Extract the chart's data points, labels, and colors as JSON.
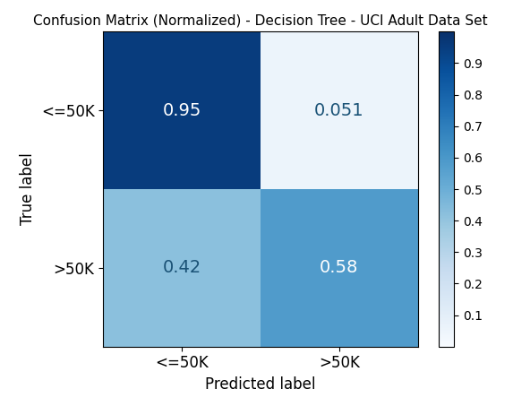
{
  "title": "Confusion Matrix (Normalized) - Decision Tree - UCI Adult Data Set",
  "matrix": [
    [
      0.95,
      0.051
    ],
    [
      0.42,
      0.58
    ]
  ],
  "classes": [
    "<=50K",
    ">50K"
  ],
  "xlabel": "Predicted label",
  "ylabel": "True label",
  "cmap": "Blues",
  "vmin": 0.0,
  "vmax": 1.0,
  "cbar_ticks": [
    0.1,
    0.2,
    0.3,
    0.4,
    0.5,
    0.6,
    0.7,
    0.8,
    0.9
  ],
  "text_colors": {
    "dark_threshold": 0.5,
    "dark_color": "white",
    "light_color": "#1a5276"
  },
  "cell_text": [
    [
      "0.95",
      "0.051"
    ],
    [
      "0.42",
      "0.58"
    ]
  ],
  "figsize": [
    5.73,
    4.53
  ],
  "dpi": 100,
  "title_fontsize": 11,
  "axis_label_fontsize": 12,
  "tick_fontsize": 12,
  "cell_fontsize": 14,
  "cbar_fontsize": 10
}
